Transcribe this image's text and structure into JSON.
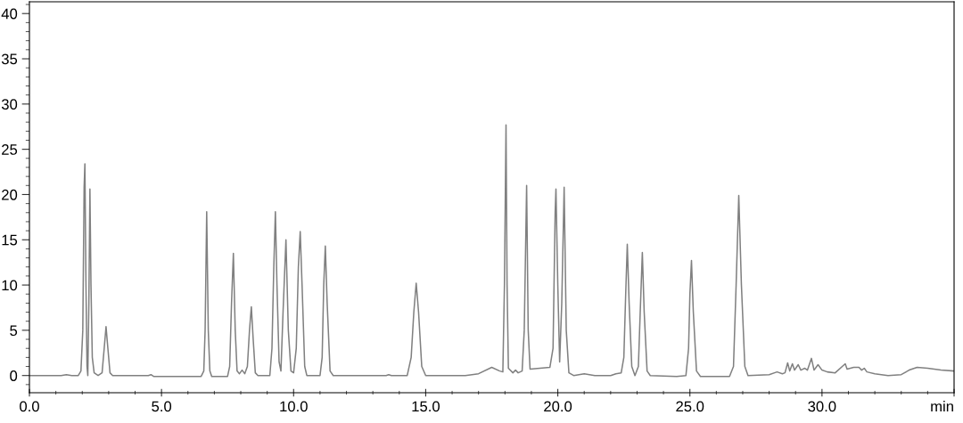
{
  "chart_data": {
    "type": "line",
    "x": [
      0,
      1.2,
      1.4,
      1.6,
      1.85,
      1.95,
      2.02,
      2.07,
      2.1,
      2.14,
      2.18,
      2.21,
      2.25,
      2.29,
      2.33,
      2.38,
      2.45,
      2.6,
      2.75,
      2.83,
      2.9,
      2.97,
      3.05,
      3.15,
      4.5,
      4.6,
      4.7,
      6.5,
      6.6,
      6.65,
      6.71,
      6.77,
      6.83,
      6.9,
      7.5,
      7.58,
      7.65,
      7.72,
      7.79,
      7.86,
      7.95,
      8.05,
      8.15,
      8.25,
      8.33,
      8.4,
      8.47,
      8.55,
      8.65,
      9.1,
      9.18,
      9.25,
      9.31,
      9.37,
      9.45,
      9.52,
      9.6,
      9.71,
      9.8,
      9.9,
      10.0,
      10.1,
      10.18,
      10.25,
      10.32,
      10.42,
      10.5,
      11.0,
      11.08,
      11.14,
      11.2,
      11.27,
      11.38,
      11.5,
      13.5,
      13.6,
      13.7,
      14.3,
      14.45,
      14.55,
      14.64,
      14.73,
      14.85,
      15.0,
      16.5,
      17.0,
      17.5,
      17.8,
      17.92,
      17.98,
      18.04,
      18.08,
      18.13,
      18.3,
      18.4,
      18.5,
      18.65,
      18.73,
      18.82,
      18.88,
      18.95,
      19.7,
      19.82,
      19.9,
      19.93,
      20.0,
      20.07,
      20.15,
      20.24,
      20.32,
      20.42,
      20.6,
      21.0,
      21.2,
      21.4,
      22.0,
      22.2,
      22.4,
      22.5,
      22.57,
      22.63,
      22.7,
      22.8,
      22.92,
      23.05,
      23.12,
      23.2,
      23.27,
      23.38,
      23.5,
      24.5,
      24.85,
      24.95,
      25.0,
      25.06,
      25.13,
      25.25,
      25.4,
      26.5,
      26.65,
      26.75,
      26.85,
      26.95,
      27.08,
      27.2,
      28.0,
      28.3,
      28.5,
      28.6,
      28.7,
      28.78,
      28.88,
      28.96,
      29.1,
      29.2,
      29.35,
      29.45,
      29.6,
      29.7,
      29.85,
      30.0,
      30.2,
      30.5,
      30.88,
      30.95,
      31.2,
      31.4,
      31.5,
      31.6,
      31.7,
      32.0,
      32.5,
      33.0,
      33.3,
      33.6,
      34.0,
      34.5,
      35
    ],
    "series": [
      {
        "color": "#808080",
        "values": [
          0,
          0,
          0.1,
          0,
          0,
          0.5,
          5,
          20.8,
          23.4,
          10,
          1,
          0,
          8,
          20.6,
          10,
          2,
          0.3,
          0,
          0.3,
          3,
          5.4,
          3,
          0.3,
          0,
          0,
          0.1,
          -0.1,
          -0.1,
          0.5,
          5,
          18.1,
          5,
          0.5,
          -0.1,
          -0.1,
          1,
          8,
          13.5,
          5,
          0.5,
          0.2,
          0.6,
          0.2,
          1,
          5,
          7.6,
          4,
          0.3,
          0,
          0,
          3,
          12,
          18.1,
          10,
          1.5,
          0.5,
          7,
          15,
          5,
          0.5,
          0.3,
          3,
          12,
          15.9,
          10,
          1,
          0,
          0,
          2,
          10,
          14.3,
          8,
          0.5,
          0,
          0,
          0.1,
          0,
          0,
          2,
          7,
          10.2,
          7,
          1,
          0,
          0,
          0.2,
          0.9,
          0.5,
          0.4,
          10,
          27.7,
          10,
          0.8,
          0.3,
          0.6,
          0.3,
          0.5,
          5,
          21.0,
          5,
          0.7,
          0.9,
          3,
          18,
          20.6,
          10,
          1.5,
          8,
          20.8,
          5,
          0.3,
          0,
          0.2,
          0.1,
          0,
          0,
          0.2,
          0.3,
          2,
          9,
          14.5,
          8,
          1,
          0,
          1,
          7,
          13.6,
          7,
          0.5,
          0,
          -0.1,
          0,
          3,
          9,
          12.7,
          7,
          0.5,
          -0.1,
          -0.1,
          1,
          10,
          19.9,
          10,
          1,
          0,
          0.1,
          0.4,
          0.2,
          0.3,
          1.4,
          0.5,
          1.3,
          0.6,
          1.2,
          0.6,
          0.8,
          0.6,
          1.9,
          0.6,
          1.2,
          0.6,
          0.4,
          0.3,
          1.3,
          0.7,
          0.9,
          0.9,
          0.6,
          0.8,
          0.4,
          0.2,
          0,
          0.1,
          0.6,
          0.9,
          0.8,
          0.6,
          0.5
        ]
      }
    ],
    "xlim": [
      0,
      35
    ],
    "xticks": [
      {
        "value": 0,
        "label": "0.0"
      },
      {
        "value": 5,
        "label": "5.0"
      },
      {
        "value": 10,
        "label": "10.0"
      },
      {
        "value": 15,
        "label": "15.0"
      },
      {
        "value": 20,
        "label": "20.0"
      },
      {
        "value": 25,
        "label": "25.0"
      },
      {
        "value": 30,
        "label": "30.0"
      },
      {
        "value": 35,
        "label": "min"
      }
    ],
    "ylim": [
      -1.9,
      41.3
    ],
    "yticks": [
      0,
      5,
      10,
      15,
      20,
      25,
      30,
      35,
      40
    ],
    "grid": false,
    "marker": "none",
    "line_style": "solid"
  }
}
